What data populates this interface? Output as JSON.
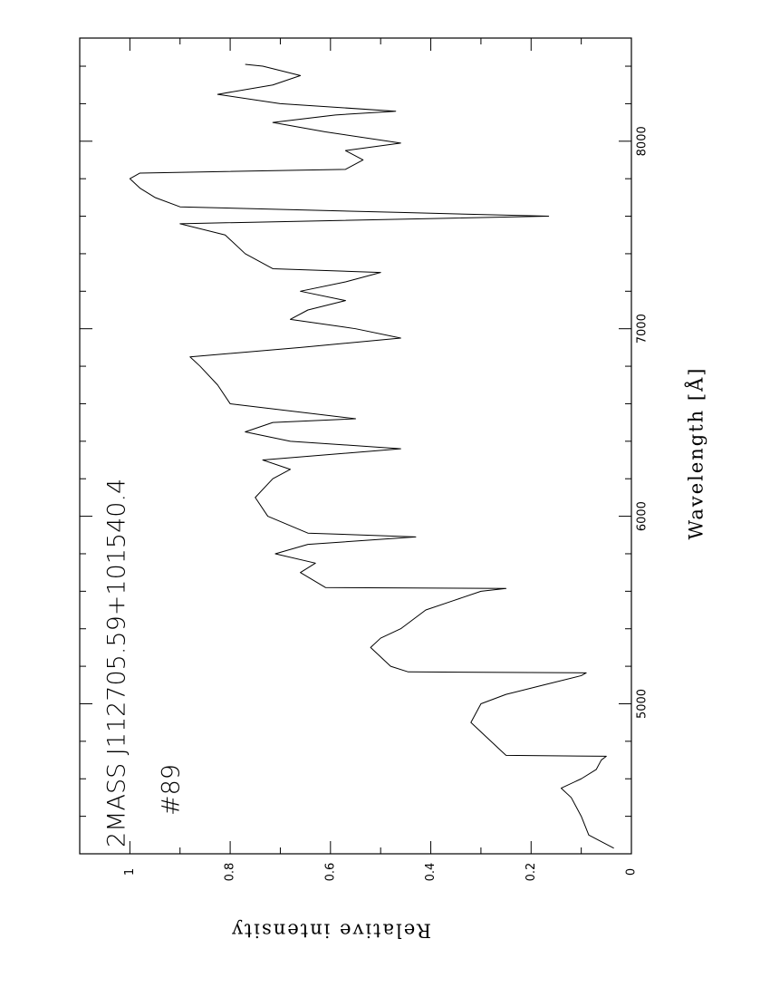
{
  "chart_data": {
    "type": "line",
    "title": "2MASS J112705.59+101540.4",
    "subtitle": "#89",
    "x_label": "Wavelength [Å]",
    "y_label": "Relative intensity",
    "xlim": [
      4200,
      8550
    ],
    "ylim": [
      0,
      1.1
    ],
    "xticks": [
      5000,
      6000,
      7000,
      8000
    ],
    "xminor_ticks": [
      4400,
      4600,
      4800,
      5200,
      5400,
      5600,
      5800,
      6200,
      6400,
      6600,
      6800,
      7200,
      7400,
      7600,
      7800,
      8200,
      8400
    ],
    "yticks": [
      0,
      0.2,
      0.4,
      0.6,
      0.8,
      1
    ],
    "yminor_ticks": [
      0.1,
      0.3,
      0.5,
      0.7,
      0.9
    ],
    "color": "#000000",
    "x": [
      4230,
      4300,
      4400,
      4500,
      4550,
      4600,
      4650,
      4700,
      4720,
      4725,
      4750,
      4800,
      4900,
      5000,
      5050,
      5100,
      5150,
      5165,
      5170,
      5200,
      5300,
      5350,
      5400,
      5500,
      5550,
      5600,
      5615,
      5620,
      5700,
      5750,
      5800,
      5850,
      5890,
      5910,
      6000,
      6100,
      6200,
      6250,
      6300,
      6360,
      6400,
      6450,
      6500,
      6520,
      6600,
      6700,
      6800,
      6850,
      6900,
      6950,
      7000,
      7050,
      7100,
      7150,
      7200,
      7250,
      7300,
      7320,
      7400,
      7500,
      7560,
      7600,
      7620,
      7650,
      7700,
      7750,
      7800,
      7830,
      7850,
      7900,
      7950,
      7990,
      8050,
      8100,
      8140,
      8160,
      8200,
      8250,
      8300,
      8350,
      8400,
      8410
    ],
    "values": [
      0.035,
      0.085,
      0.1,
      0.12,
      0.14,
      0.1,
      0.07,
      0.06,
      0.05,
      0.25,
      0.26,
      0.28,
      0.32,
      0.3,
      0.25,
      0.175,
      0.1,
      0.09,
      0.445,
      0.48,
      0.52,
      0.5,
      0.46,
      0.41,
      0.355,
      0.3,
      0.25,
      0.61,
      0.66,
      0.63,
      0.71,
      0.645,
      0.43,
      0.645,
      0.725,
      0.75,
      0.715,
      0.68,
      0.735,
      0.46,
      0.68,
      0.77,
      0.715,
      0.55,
      0.8,
      0.825,
      0.86,
      0.88,
      0.66,
      0.46,
      0.55,
      0.68,
      0.645,
      0.57,
      0.66,
      0.57,
      0.5,
      0.715,
      0.77,
      0.81,
      0.9,
      0.165,
      0.46,
      0.9,
      0.95,
      0.98,
      1.0,
      0.98,
      0.57,
      0.535,
      0.57,
      0.46,
      0.61,
      0.715,
      0.59,
      0.47,
      0.7,
      0.825,
      0.715,
      0.66,
      0.735,
      0.77
    ]
  }
}
